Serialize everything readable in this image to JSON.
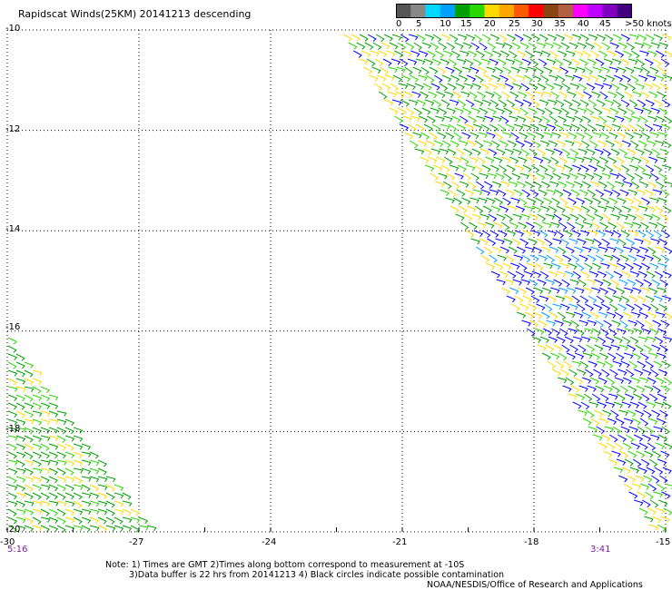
{
  "header": {
    "title": "Rapidscat Winds(25KM) 20141213 descending"
  },
  "legend": {
    "labels": [
      "0",
      "5",
      "10",
      "15",
      "20",
      "25",
      "30",
      "35",
      "40",
      "45",
      ">50 knots"
    ],
    "colors": [
      "#555555",
      "#888888",
      "#00d8ff",
      "#00a0ff",
      "#00a000",
      "#28d800",
      "#ffd800",
      "#ffa500",
      "#ff5a00",
      "#ff0000",
      "#8b4513",
      "#b06040",
      "#ff00ff",
      "#c000ff",
      "#8000c0",
      "#400080"
    ]
  },
  "map": {
    "lat_labels": [
      "-10",
      "-12",
      "-14",
      "-16",
      "-18",
      "-20"
    ],
    "lon_labels": [
      "-30",
      "-27",
      "-24",
      "-21",
      "-18",
      "-15"
    ],
    "lon_range": [
      -30,
      -15
    ],
    "lat_range": [
      -20,
      -10
    ],
    "swath_times": {
      "left": "5:16",
      "right": "3:41"
    }
  },
  "notes": {
    "line1": "Note: 1) Times are GMT 2)Times along bottom correspond to measurement at -10S",
    "line2": "3)Data buffer is 22 hrs from 20141213 4) Black circles indicate possible contamination",
    "credit": "NOAA/NESDIS/Office of Research and Applications"
  }
}
